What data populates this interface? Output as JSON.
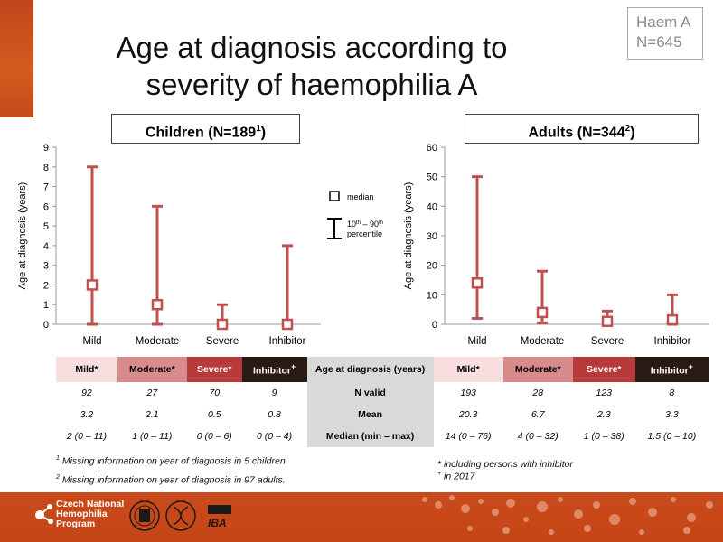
{
  "title_line1": "Age at diagnosis according to",
  "title_line2": "severity of haemophilia A",
  "badge": {
    "line1": "Haem A",
    "line2": "N=645"
  },
  "children_panel": {
    "label": "Children (N=189",
    "sup": "1",
    "close": ")"
  },
  "adults_panel": {
    "label": "Adults (N=344",
    "sup": "2",
    "close": ")"
  },
  "legend": {
    "median": "median",
    "range_pre": "10",
    "range_sup1": "th",
    "range_mid": " – 90",
    "range_sup2": "th",
    "range_line2": "percentile"
  },
  "colors": {
    "accent": "#c0504d",
    "brand": "#c94a1a",
    "mild": "#f8dede",
    "moderate": "#d98b8b",
    "severe": "#b83a3a",
    "inhibitor": "#2a1a14"
  },
  "chart_data": [
    {
      "type": "error_range",
      "title": "Children (N=189¹)",
      "ylabel": "Age at diagnosis (years)",
      "categories": [
        "Mild",
        "Moderate",
        "Severe",
        "Inhibitor"
      ],
      "median": [
        2,
        1,
        0,
        0
      ],
      "p10": [
        0,
        0,
        0,
        0
      ],
      "p90": [
        8,
        6,
        1,
        4
      ],
      "ylim": [
        0,
        9
      ],
      "yticks": [
        0,
        1,
        2,
        3,
        4,
        5,
        6,
        7,
        8,
        9
      ]
    },
    {
      "type": "error_range",
      "title": "Adults (N=344²)",
      "ylabel": "Age at diagnosis (years)",
      "categories": [
        "Mild",
        "Moderate",
        "Severe",
        "Inhibitor"
      ],
      "median": [
        14,
        4,
        1,
        1.5
      ],
      "p10": [
        2,
        0.5,
        0,
        0
      ],
      "p90": [
        50,
        18,
        4.5,
        10
      ],
      "ylim": [
        0,
        60
      ],
      "yticks": [
        0,
        10,
        20,
        30,
        40,
        50,
        60
      ]
    }
  ],
  "table": {
    "left_headers": [
      "Mild*",
      "Moderate*",
      "Severe*",
      "Inhibitor"
    ],
    "right_headers": [
      "Mild*",
      "Moderate*",
      "Severe*",
      "Inhibitor"
    ],
    "inhibitor_sup": "+",
    "center_header": "Age at diagnosis (years)",
    "rows": [
      {
        "label": "N valid",
        "left": [
          "92",
          "27",
          "70",
          "9"
        ],
        "right": [
          "193",
          "28",
          "123",
          "8"
        ]
      },
      {
        "label": "Mean",
        "left": [
          "3.2",
          "2.1",
          "0.5",
          "0.8"
        ],
        "right": [
          "20.3",
          "6.7",
          "2.3",
          "3.3"
        ]
      },
      {
        "label": "Median (min – max)",
        "left": [
          "2 (0 – 11)",
          "1 (0 – 11)",
          "0 (0 – 6)",
          "0 (0 – 4)"
        ],
        "right": [
          "14 (0 – 76)",
          "4 (0 – 32)",
          "1 (0 – 38)",
          "1.5 (0 – 10)"
        ]
      }
    ]
  },
  "notes": {
    "n1_sup": "1",
    "n1": " Missing information on year of diagnosis in 5 children.",
    "n2_sup": "2",
    "n2": " Missing information on year of diagnosis in 97 adults.",
    "n3": "* including persons with inhibitor",
    "n4_sup": "+",
    "n4": " in 2017"
  },
  "footer": {
    "line1": "Czech National",
    "line2": "Hemophilia",
    "line3": "Program",
    "iba": "IBA"
  }
}
